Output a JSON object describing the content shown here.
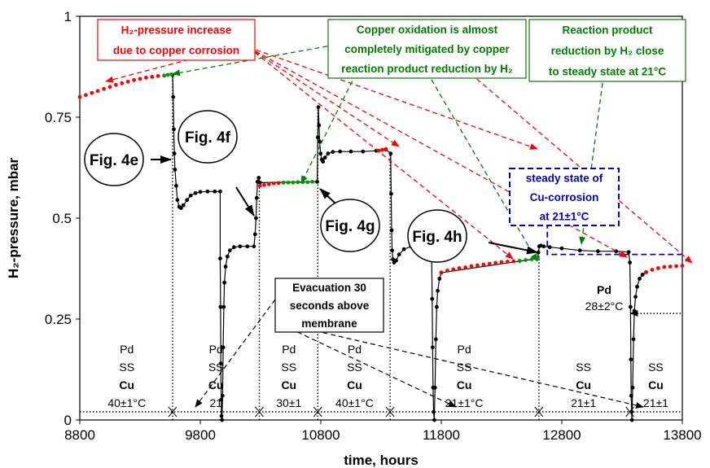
{
  "chart_data": {
    "type": "scatter",
    "title": "",
    "xlabel": "time, hours",
    "ylabel": "H₂-pressure, mbar",
    "xlim": [
      8800,
      13800
    ],
    "ylim": [
      0,
      1
    ],
    "xticks": [
      "8800",
      "9800",
      "10800",
      "11800",
      "12800",
      "13800"
    ],
    "yticks": [
      "0",
      "0.25",
      "0.5",
      "0.75",
      "1"
    ],
    "grid": false,
    "series": [
      {
        "color": "#000000",
        "points": [
          [
            9570,
            0.855
          ],
          [
            9575,
            0.8
          ],
          [
            9580,
            0.72
          ],
          [
            9585,
            0.66
          ],
          [
            9590,
            0.62
          ],
          [
            9600,
            0.58
          ],
          [
            9610,
            0.545
          ],
          [
            9625,
            0.528
          ],
          [
            9640,
            0.525
          ],
          [
            9660,
            0.532
          ],
          [
            9690,
            0.545
          ],
          [
            9720,
            0.556
          ],
          [
            9760,
            0.562
          ],
          [
            9800,
            0.565
          ],
          [
            9860,
            0.566
          ],
          [
            9920,
            0.566
          ],
          [
            9965,
            0.566
          ],
          [
            9965,
            0.4
          ],
          [
            9968,
            0.28
          ],
          [
            9970,
            0.14
          ],
          [
            9973,
            0.05
          ],
          [
            9976,
            0.01
          ],
          [
            9980,
            0.0
          ],
          [
            9985,
            0.06
          ],
          [
            9990,
            0.18
          ],
          [
            9995,
            0.28
          ],
          [
            10000,
            0.34
          ],
          [
            10010,
            0.38
          ],
          [
            10025,
            0.405
          ],
          [
            10045,
            0.42
          ],
          [
            10080,
            0.428
          ],
          [
            10130,
            0.43
          ],
          [
            10190,
            0.43
          ],
          [
            10245,
            0.43
          ],
          [
            10255,
            0.46
          ],
          [
            10262,
            0.5
          ],
          [
            10268,
            0.55
          ],
          [
            10275,
            0.59
          ],
          [
            10285,
            0.6
          ],
          [
            10295,
            0.588
          ],
          [
            10770,
            0.59
          ],
          [
            10775,
            0.7
          ],
          [
            10780,
            0.775
          ],
          [
            10785,
            0.73
          ],
          [
            10790,
            0.69
          ],
          [
            10798,
            0.66
          ],
          [
            10808,
            0.645
          ],
          [
            10818,
            0.64
          ],
          [
            10835,
            0.65
          ],
          [
            10860,
            0.66
          ],
          [
            10900,
            0.664
          ],
          [
            10960,
            0.665
          ],
          [
            11050,
            0.665
          ],
          [
            11150,
            0.665
          ],
          [
            11260,
            0.667
          ],
          [
            11340,
            0.67
          ],
          [
            11380,
            0.66
          ],
          [
            11384,
            0.56
          ],
          [
            11388,
            0.47
          ],
          [
            11392,
            0.42
          ],
          [
            11398,
            0.398
          ],
          [
            11408,
            0.39
          ],
          [
            11425,
            0.395
          ],
          [
            11450,
            0.41
          ],
          [
            11490,
            0.423
          ],
          [
            11550,
            0.43
          ],
          [
            11620,
            0.432
          ],
          [
            11680,
            0.432
          ],
          [
            11720,
            0.4
          ],
          [
            11724,
            0.3
          ],
          [
            11728,
            0.18
          ],
          [
            11732,
            0.08
          ],
          [
            11736,
            0.02
          ],
          [
            11742,
            0.0
          ],
          [
            11748,
            0.08
          ],
          [
            11755,
            0.2
          ],
          [
            11762,
            0.28
          ],
          [
            11770,
            0.32
          ],
          [
            11785,
            0.35
          ],
          [
            11800,
            0.365
          ],
          [
            12600,
            0.4
          ],
          [
            12605,
            0.415
          ],
          [
            12612,
            0.43
          ],
          [
            12625,
            0.432
          ],
          [
            12650,
            0.43
          ],
          [
            12700,
            0.428
          ],
          [
            12800,
            0.425
          ],
          [
            12950,
            0.42
          ],
          [
            13100,
            0.418
          ],
          [
            13250,
            0.418
          ],
          [
            13355,
            0.416
          ],
          [
            13365,
            0.39
          ],
          [
            13370,
            0.28
          ],
          [
            13373,
            0.15
          ],
          [
            13376,
            0.06
          ],
          [
            13379,
            0.02
          ],
          [
            13382,
            0.0
          ],
          [
            13388,
            0.08
          ],
          [
            13395,
            0.2
          ],
          [
            13402,
            0.27
          ],
          [
            13412,
            0.305
          ],
          [
            13425,
            0.33
          ],
          [
            13445,
            0.35
          ],
          [
            13470,
            0.36
          ],
          [
            13500,
            0.366
          ]
        ]
      },
      {
        "color": "#ff0000",
        "points": [
          [
            8800,
            0.8
          ],
          [
            8850,
            0.805
          ],
          [
            8900,
            0.81
          ],
          [
            8950,
            0.815
          ],
          [
            9000,
            0.82
          ],
          [
            9050,
            0.825
          ],
          [
            9100,
            0.83
          ],
          [
            9150,
            0.834
          ],
          [
            9200,
            0.838
          ],
          [
            9250,
            0.842
          ],
          [
            9300,
            0.845
          ],
          [
            9350,
            0.848
          ],
          [
            9400,
            0.85
          ],
          [
            9450,
            0.852
          ],
          [
            9500,
            0.853
          ],
          [
            10295,
            0.58
          ],
          [
            10330,
            0.582
          ],
          [
            10370,
            0.584
          ],
          [
            10410,
            0.586
          ],
          [
            10450,
            0.587
          ],
          [
            10490,
            0.588
          ],
          [
            11280,
            0.667
          ],
          [
            11310,
            0.669
          ],
          [
            11340,
            0.671
          ],
          [
            11800,
            0.365
          ],
          [
            11850,
            0.37
          ],
          [
            11900,
            0.373
          ],
          [
            11950,
            0.376
          ],
          [
            12000,
            0.378
          ],
          [
            12050,
            0.381
          ],
          [
            12100,
            0.383
          ],
          [
            12150,
            0.385
          ],
          [
            12200,
            0.387
          ],
          [
            12250,
            0.389
          ],
          [
            12300,
            0.391
          ],
          [
            12350,
            0.392
          ],
          [
            12400,
            0.393
          ],
          [
            12450,
            0.394
          ],
          [
            13500,
            0.366
          ],
          [
            13550,
            0.372
          ],
          [
            13600,
            0.376
          ],
          [
            13650,
            0.379
          ],
          [
            13700,
            0.38
          ],
          [
            13750,
            0.381
          ],
          [
            13800,
            0.382
          ]
        ]
      },
      {
        "color": "#00a000",
        "points": [
          [
            9500,
            0.853
          ],
          [
            9530,
            0.855
          ],
          [
            9560,
            0.856
          ],
          [
            10490,
            0.588
          ],
          [
            10530,
            0.588
          ],
          [
            10570,
            0.588
          ],
          [
            10610,
            0.589
          ],
          [
            10650,
            0.589
          ],
          [
            10690,
            0.589
          ],
          [
            10730,
            0.59
          ],
          [
            12450,
            0.394
          ],
          [
            12500,
            0.396
          ],
          [
            12550,
            0.398
          ],
          [
            12600,
            0.4
          ]
        ]
      }
    ],
    "markers": [
      {
        "text": "Fig. 4e"
      },
      {
        "text": "Fig. 4f"
      },
      {
        "text": "Fig. 4g"
      },
      {
        "text": "Fig. 4h"
      }
    ],
    "annotations": [
      {
        "lines": [
          "H₂-pressure increase",
          "due to copper corrosion"
        ],
        "color": "#ff0000"
      },
      {
        "lines": [
          "Copper oxidation is almost",
          "completely mitigated by copper",
          "reaction  product reduction by H₂"
        ],
        "color": "#008000"
      },
      {
        "lines": [
          "Reaction product",
          "reduction by H₂ close",
          "to steady state at 21°C"
        ],
        "color": "#008000"
      },
      {
        "lines": [
          "steady state of",
          "Cu-corrosion",
          "at 21±1°C"
        ],
        "color": "#0000cc"
      },
      {
        "lines": [
          "Evacuation 30",
          "seconds above",
          "membrane"
        ],
        "color": "#000000"
      }
    ],
    "segments": [
      {
        "lines": [
          "Pd",
          "SS",
          "Cu",
          "40±1°C"
        ]
      },
      {
        "lines": [
          "Pd",
          "SS",
          "Cu",
          "21"
        ]
      },
      {
        "lines": [
          "Pd",
          "SS",
          "Cu",
          "30±1"
        ]
      },
      {
        "lines": [
          "Pd",
          "SS",
          "Cu",
          "40±1°C"
        ]
      },
      {
        "lines": [
          "Pd",
          "SS",
          "Cu",
          "21±1°C"
        ]
      },
      {
        "lines": [
          "SS",
          "Cu",
          "21±1"
        ]
      },
      {
        "lines": [
          "SS",
          "Cu",
          "21±1"
        ]
      }
    ],
    "pd_label": {
      "lines": [
        "Pd",
        "28±2°C"
      ]
    }
  }
}
